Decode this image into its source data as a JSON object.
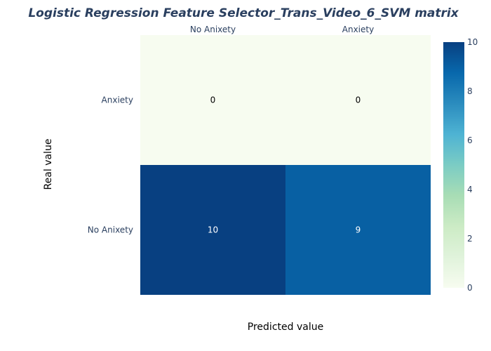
{
  "chart_data": {
    "type": "heatmap",
    "title": "Logistic Regression Feature Selector_Trans_Video_6_SVM matrix",
    "xlabel": "Predicted value",
    "ylabel": "Real value",
    "x_categories": [
      "No Anixety",
      "Anxiety"
    ],
    "y_categories_top_to_bottom": [
      "Anxiety",
      "No Anixety"
    ],
    "z": [
      [
        0,
        0
      ],
      [
        10,
        9
      ]
    ],
    "colorbar": {
      "range": [
        0,
        10
      ],
      "ticks": [
        0,
        2,
        4,
        6,
        8,
        10
      ],
      "colorscale": "GnBu"
    },
    "x_axis_side": "top"
  },
  "colors": {
    "title": "#2a3f5f",
    "tick": "#2a3f5f",
    "scale": [
      "#f7fcf0",
      "#e0f3db",
      "#ccebc5",
      "#a8ddb5",
      "#7bccc4",
      "#4eb3d3",
      "#2b8cbe",
      "#0868ac",
      "#084081"
    ]
  }
}
